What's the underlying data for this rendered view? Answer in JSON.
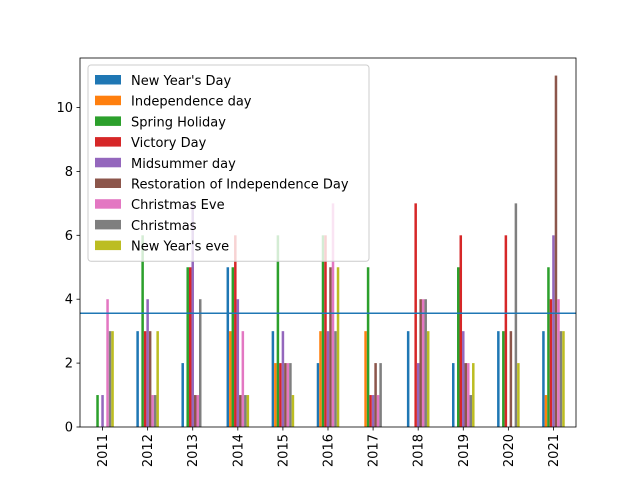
{
  "chart_data": {
    "type": "bar",
    "title": "",
    "xlabel": "",
    "ylabel": "",
    "ylim": [
      0,
      11.55
    ],
    "yticks": [
      0,
      2,
      4,
      6,
      8,
      10
    ],
    "grid": false,
    "legend_position": "upper-left",
    "categories": [
      "2011",
      "2012",
      "2013",
      "2014",
      "2015",
      "2016",
      "2017",
      "2018",
      "2019",
      "2020",
      "2021"
    ],
    "reference_line": {
      "value": 3.56,
      "color": "#1f77b4"
    },
    "series": [
      {
        "name": "New Year's Day",
        "color": "#1f77b4",
        "values": [
          0,
          3,
          2,
          5,
          3,
          2,
          0,
          3,
          2,
          3,
          3
        ]
      },
      {
        "name": "Independence day",
        "color": "#ff7f0e",
        "values": [
          0,
          0,
          0,
          3,
          2,
          3,
          3,
          0,
          0,
          0,
          1
        ]
      },
      {
        "name": "Spring Holiday",
        "color": "#2ca02c",
        "values": [
          1,
          6,
          5,
          5,
          6,
          6,
          5,
          0,
          5,
          3,
          5
        ]
      },
      {
        "name": "Victory Day",
        "color": "#d62728",
        "values": [
          0,
          3,
          5,
          6,
          2,
          6,
          1,
          7,
          6,
          6,
          4
        ]
      },
      {
        "name": "Midsummer day",
        "color": "#9467bd",
        "values": [
          1,
          4,
          7,
          4,
          3,
          3,
          1,
          2,
          3,
          0,
          6
        ]
      },
      {
        "name": "Restoration of Independence Day",
        "color": "#8c564b",
        "values": [
          0,
          3,
          1,
          1,
          2,
          5,
          2,
          4,
          2,
          3,
          11
        ]
      },
      {
        "name": "Christmas Eve",
        "color": "#e377c2",
        "values": [
          4,
          1,
          1,
          3,
          2,
          7,
          1,
          4,
          2,
          0,
          4
        ]
      },
      {
        "name": "Christmas",
        "color": "#7f7f7f",
        "values": [
          3,
          1,
          4,
          1,
          2,
          3,
          2,
          4,
          1,
          7,
          3
        ]
      },
      {
        "name": "New Year's eve",
        "color": "#bcbd22",
        "values": [
          3,
          3,
          0,
          1,
          1,
          5,
          0,
          3,
          2,
          2,
          3
        ]
      }
    ]
  }
}
